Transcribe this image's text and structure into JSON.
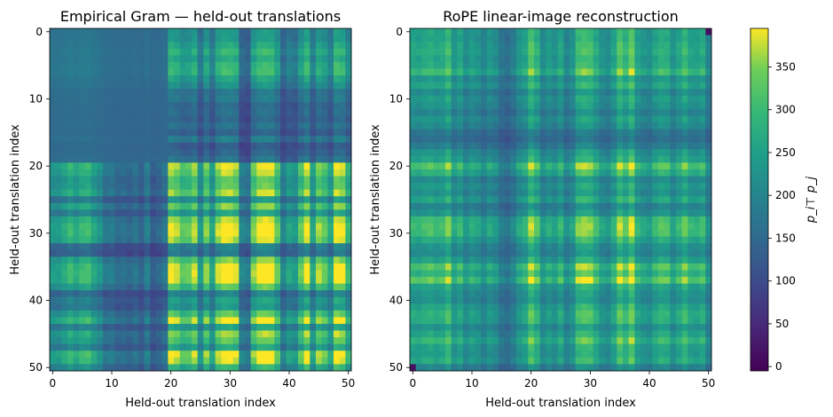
{
  "chart_data": [
    {
      "type": "heatmap",
      "title": "Empirical Gram — held-out translations",
      "xlabel": "Held-out translation index",
      "ylabel": "Held-out translation index",
      "xticks": [
        0,
        10,
        20,
        30,
        40,
        50
      ],
      "yticks": [
        0,
        10,
        20,
        30,
        40,
        50
      ],
      "grid_size": 51,
      "value_range": [
        0,
        390
      ],
      "pattern": "block structure: low values (~80-150) for indices 0-19 rows/cols, high values (~250-390) for indices 20-50 with bright bands near 21-23, 28-32, 35-37, 47-49",
      "profile": [
        0.55,
        0.55,
        0.62,
        0.7,
        0.62,
        0.7,
        0.72,
        0.6,
        0.52,
        0.38,
        0.4,
        0.32,
        0.34,
        0.3,
        0.36,
        0.28,
        0.42,
        0.25,
        0.3,
        0.38,
        0.95,
        0.9,
        0.78,
        0.8,
        0.9,
        0.55,
        0.85,
        0.6,
        0.9,
        0.98,
        0.98,
        0.92,
        0.45,
        0.4,
        0.85,
        0.98,
        1.0,
        0.98,
        0.8,
        0.45,
        0.6,
        0.55,
        0.8,
        0.98,
        0.6,
        0.88,
        0.8,
        0.62,
        1.0,
        0.95,
        0.7
      ]
    },
    {
      "type": "heatmap",
      "title": "RoPE linear-image reconstruction",
      "xlabel": "Held-out translation index",
      "ylabel": "Held-out translation index",
      "xticks": [
        0,
        10,
        20,
        30,
        40,
        50
      ],
      "yticks": [
        0,
        10,
        20,
        30,
        40,
        50
      ],
      "grid_size": 51,
      "value_range": [
        0,
        390
      ],
      "pattern": "checkerboard-like periodic structure with bright rows/cols near 20, 28-30, 35-37, 46-49",
      "profile": [
        0.72,
        0.7,
        0.75,
        0.78,
        0.72,
        0.75,
        0.88,
        0.62,
        0.72,
        0.55,
        0.65,
        0.6,
        0.5,
        0.62,
        0.55,
        0.4,
        0.35,
        0.45,
        0.62,
        0.7,
        0.95,
        0.8,
        0.55,
        0.65,
        0.58,
        0.72,
        0.5,
        0.6,
        0.88,
        0.92,
        0.9,
        0.75,
        0.6,
        0.55,
        0.7,
        0.95,
        0.82,
        1.0,
        0.7,
        0.62,
        0.58,
        0.72,
        0.8,
        0.78,
        0.6,
        0.72,
        0.85,
        0.7,
        0.68,
        0.75,
        0.5
      ]
    }
  ],
  "colorbar": {
    "label": "p_i⊤ p_j",
    "ticks": [
      0,
      50,
      100,
      150,
      200,
      250,
      300,
      350
    ]
  }
}
